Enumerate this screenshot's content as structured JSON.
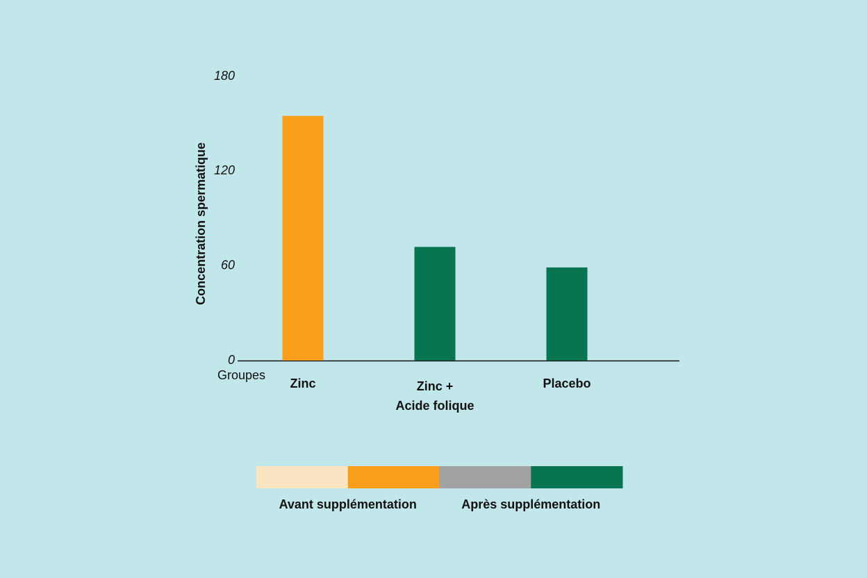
{
  "chart_data": {
    "type": "bar",
    "y_label": "Concentration spermatique",
    "x_label": "Groupes",
    "categories": [
      "Zinc",
      "Zinc +\nAcide folique",
      "Placebo"
    ],
    "values": [
      155,
      72,
      59
    ],
    "colors": [
      "#f99d1c",
      "#087550",
      "#087550"
    ],
    "ylim": [
      0,
      180
    ],
    "yticks": [
      0,
      60,
      120,
      180
    ],
    "legend": [
      {
        "label": "Avant supplémentation",
        "colors": [
          "#fbe4c2",
          "#f99d1c"
        ]
      },
      {
        "label": "Après supplémentation",
        "colors": [
          "#a2a2a2",
          "#087550"
        ]
      }
    ]
  }
}
